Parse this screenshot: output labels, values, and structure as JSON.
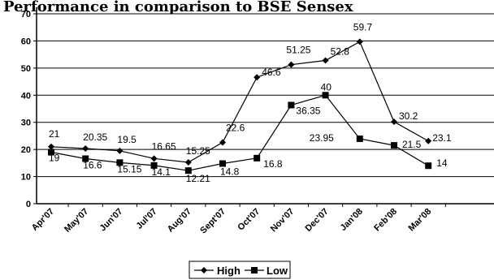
{
  "chart_data": {
    "type": "line",
    "title": "Performance in comparison to BSE Sensex",
    "categories": [
      "Apr'07",
      "May'07",
      "Jun'07",
      "Jul'07",
      "Aug'07",
      "Sept'07",
      "Oct'07",
      "Nov'07",
      "Dec'07",
      "Jan'08",
      "Feb'08",
      "Mar'08"
    ],
    "series": [
      {
        "name": "High",
        "marker": "diamond",
        "values": [
          21,
          20.35,
          19.5,
          16.65,
          15.25,
          22.6,
          46.6,
          51.25,
          52.8,
          59.7,
          30.2,
          23.1
        ],
        "labels": [
          "21",
          "20.35",
          "19.5",
          "16.65",
          "15.25",
          "22.6",
          "46.6",
          "51.25",
          "52.8",
          "59.7",
          "30.2",
          "23.1"
        ]
      },
      {
        "name": "Low",
        "marker": "square",
        "values": [
          19,
          16.6,
          15.15,
          14.1,
          12.21,
          14.8,
          16.8,
          36.35,
          40,
          23.95,
          21.5,
          14
        ],
        "labels": [
          "19",
          "16.6",
          "15.15",
          "14.1",
          "12.21",
          "14.8",
          "16.8",
          "36.35",
          "40",
          "23.95",
          "21.5",
          "14"
        ]
      }
    ],
    "yticks": [
      "0",
      "10",
      "20",
      "30",
      "40",
      "50",
      "60",
      "70"
    ],
    "ylim": [
      0,
      70
    ],
    "grid": true,
    "legend_position": "bottom-center",
    "line_color": "#000000"
  }
}
